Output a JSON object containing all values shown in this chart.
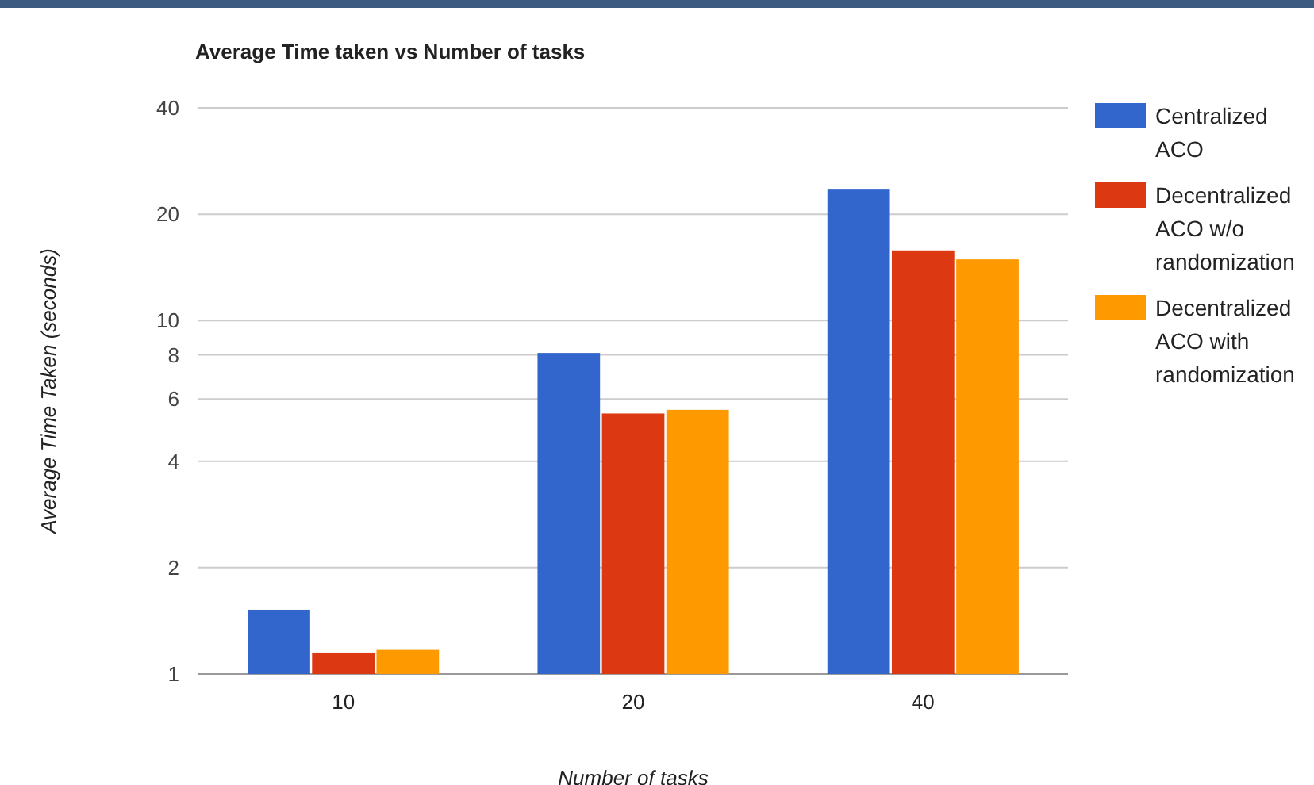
{
  "chart_data": {
    "type": "bar",
    "title": "Average Time taken vs Number of tasks",
    "xlabel": "Number of tasks",
    "ylabel": "Average Time Taken (seconds)",
    "categories": [
      "10",
      "20",
      "40"
    ],
    "series": [
      {
        "name": "Centralized ACO",
        "color": "#3366cc",
        "values": [
          1.52,
          8.1,
          23.6
        ]
      },
      {
        "name": "Decentralized ACO w/o randomization",
        "color": "#dc3912",
        "values": [
          1.15,
          5.46,
          15.8
        ]
      },
      {
        "name": "Decentralized ACO with randomization",
        "color": "#ff9900",
        "values": [
          1.17,
          5.59,
          14.9
        ]
      }
    ],
    "log": "y",
    "ylim": [
      1,
      40
    ],
    "yticks": [
      1,
      2,
      4,
      6,
      8,
      10,
      20,
      40
    ],
    "grid": "y",
    "legend": "right"
  }
}
